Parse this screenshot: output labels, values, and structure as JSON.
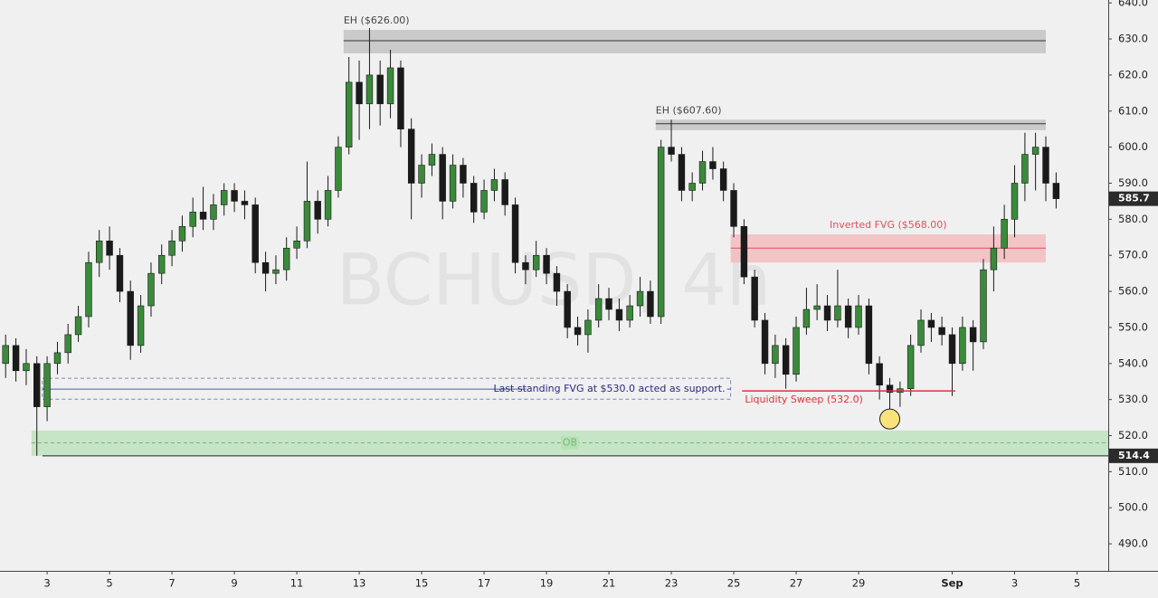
{
  "chart_data": {
    "type": "candlestick",
    "watermark": "BCHUSD, 4h",
    "xlim": [
      1.49,
      37.0
    ],
    "ylim": [
      482.5,
      640.8
    ],
    "xticks": [
      3,
      5,
      7,
      9,
      11,
      13,
      15,
      17,
      19,
      21,
      23,
      25,
      27,
      29,
      {
        "value": 32,
        "label": "Sep"
      },
      {
        "value": 34,
        "label": "3"
      },
      {
        "value": 36,
        "label": "5"
      }
    ],
    "yticks": [
      {
        "value": 490,
        "label": "490.0"
      },
      {
        "value": 500,
        "label": "500.0"
      },
      {
        "value": 510,
        "label": "510.0"
      },
      {
        "value": 520,
        "label": "520.0"
      },
      {
        "value": 530,
        "label": "530.0"
      },
      {
        "value": 540,
        "label": "540.0"
      },
      {
        "value": 550,
        "label": "550.0"
      },
      {
        "value": 560,
        "label": "560.0"
      },
      {
        "value": 570,
        "label": "570.0"
      },
      {
        "value": 580,
        "label": "580.0"
      },
      {
        "value": 590,
        "label": "590.0"
      },
      {
        "value": 600,
        "label": "600.0"
      },
      {
        "value": 610,
        "label": "610.0"
      },
      {
        "value": 620,
        "label": "620.0"
      },
      {
        "value": 630,
        "label": "630.0"
      },
      {
        "value": 640,
        "label": "640.0"
      }
    ],
    "up_color": "#3a8a3a",
    "down_color": "#1a1a1a",
    "x": [
      1.67,
      2,
      2.33,
      2.67,
      3,
      3.33,
      3.67,
      4,
      4.33,
      4.67,
      5,
      5.33,
      5.67,
      6,
      6.33,
      6.67,
      7,
      7.33,
      7.67,
      8,
      8.33,
      8.67,
      9,
      9.33,
      9.67,
      10,
      10.33,
      10.67,
      11,
      11.33,
      11.67,
      12,
      12.33,
      12.67,
      13,
      13.33,
      13.67,
      14,
      14.33,
      14.67,
      15,
      15.33,
      15.67,
      16,
      16.33,
      16.67,
      17,
      17.33,
      17.67,
      18,
      18.33,
      18.67,
      19,
      19.33,
      19.67,
      20,
      20.33,
      20.67,
      21,
      21.33,
      21.67,
      22,
      22.33,
      22.67,
      23,
      23.33,
      23.67,
      24,
      24.33,
      24.67,
      25,
      25.33,
      25.67,
      26,
      26.33,
      26.67,
      27,
      27.33,
      27.67,
      28,
      28.33,
      28.67,
      29,
      29.33,
      29.67,
      30,
      30.33,
      30.67,
      31,
      31.33,
      31.67,
      32,
      32.33,
      32.67,
      33,
      33.33,
      33.67,
      34,
      34.33,
      34.67,
      35,
      35.33
    ],
    "ohlc": [
      [
        540,
        548,
        536,
        545
      ],
      [
        545,
        547,
        535,
        538
      ],
      [
        538,
        544,
        534,
        540
      ],
      [
        540,
        542,
        514.4,
        528
      ],
      [
        528,
        542,
        524,
        540
      ],
      [
        540,
        546,
        537,
        543
      ],
      [
        543,
        551,
        540,
        548
      ],
      [
        548,
        556,
        546,
        553
      ],
      [
        553,
        571,
        550,
        568
      ],
      [
        568,
        577,
        564,
        574
      ],
      [
        574,
        578,
        566,
        570
      ],
      [
        570,
        572,
        557,
        560
      ],
      [
        560,
        563,
        541,
        545
      ],
      [
        545,
        559,
        543,
        556
      ],
      [
        556,
        568,
        553,
        565
      ],
      [
        565,
        573,
        562,
        570
      ],
      [
        570,
        577,
        567,
        574
      ],
      [
        574,
        581,
        571,
        578
      ],
      [
        578,
        586,
        575,
        582
      ],
      [
        582,
        589,
        577,
        580
      ],
      [
        580,
        587,
        577,
        584
      ],
      [
        584,
        590,
        581,
        588
      ],
      [
        588,
        590,
        582,
        585
      ],
      [
        585,
        588,
        580,
        584
      ],
      [
        584,
        586,
        565,
        568
      ],
      [
        568,
        571,
        560,
        565
      ],
      [
        565,
        570,
        562,
        566
      ],
      [
        566,
        575,
        563,
        572
      ],
      [
        572,
        578,
        569,
        574
      ],
      [
        574,
        596,
        572,
        585
      ],
      [
        585,
        588,
        576,
        580
      ],
      [
        580,
        592,
        578,
        588
      ],
      [
        588,
        603,
        586,
        600
      ],
      [
        600,
        625,
        598,
        618
      ],
      [
        618,
        624,
        602,
        612
      ],
      [
        612,
        633,
        605,
        620
      ],
      [
        620,
        624,
        606,
        612
      ],
      [
        612,
        627,
        608,
        622
      ],
      [
        622,
        624,
        600,
        605
      ],
      [
        605,
        608,
        580,
        590
      ],
      [
        590,
        598,
        586,
        595
      ],
      [
        595,
        601,
        592,
        598
      ],
      [
        598,
        600,
        580,
        585
      ],
      [
        585,
        598,
        583,
        595
      ],
      [
        595,
        597,
        586,
        590
      ],
      [
        590,
        592,
        579,
        582
      ],
      [
        582,
        591,
        580,
        588
      ],
      [
        588,
        594,
        585,
        591
      ],
      [
        591,
        593,
        581,
        584
      ],
      [
        584,
        586,
        565,
        568
      ],
      [
        568,
        570,
        562,
        566
      ],
      [
        566,
        574,
        564,
        570
      ],
      [
        570,
        572,
        562,
        565
      ],
      [
        565,
        567,
        556,
        560
      ],
      [
        560,
        562,
        547,
        550
      ],
      [
        550,
        553,
        545,
        548
      ],
      [
        548,
        555,
        543,
        552
      ],
      [
        552,
        562,
        550,
        558
      ],
      [
        558,
        561,
        552,
        555
      ],
      [
        555,
        558,
        549,
        552
      ],
      [
        552,
        559,
        550,
        556
      ],
      [
        556,
        564,
        553,
        560
      ],
      [
        560,
        563,
        551,
        553
      ],
      [
        553,
        602,
        551,
        600
      ],
      [
        600,
        607.6,
        596,
        598
      ],
      [
        598,
        600,
        585,
        588
      ],
      [
        588,
        593,
        585,
        590
      ],
      [
        590,
        599,
        588,
        596
      ],
      [
        596,
        600,
        591,
        594
      ],
      [
        594,
        596,
        585,
        588
      ],
      [
        588,
        590,
        575,
        578
      ],
      [
        578,
        580,
        562,
        564
      ],
      [
        564,
        566,
        550,
        552
      ],
      [
        552,
        554,
        537,
        540
      ],
      [
        540,
        548,
        536,
        545
      ],
      [
        545,
        547,
        533,
        537
      ],
      [
        537,
        553,
        535,
        550
      ],
      [
        550,
        561,
        548,
        555
      ],
      [
        555,
        562,
        552,
        556
      ],
      [
        556,
        559,
        549,
        552
      ],
      [
        552,
        566,
        550,
        556
      ],
      [
        556,
        558,
        547,
        550
      ],
      [
        550,
        559,
        548,
        556
      ],
      [
        556,
        558,
        537,
        540
      ],
      [
        540,
        542,
        530,
        534
      ],
      [
        534,
        536,
        527,
        532
      ],
      [
        532,
        535,
        528,
        533
      ],
      [
        533,
        548,
        531,
        545
      ],
      [
        545,
        555,
        543,
        552
      ],
      [
        552,
        554,
        546,
        550
      ],
      [
        550,
        553,
        545,
        548
      ],
      [
        548,
        550,
        531,
        540
      ],
      [
        540,
        553,
        538,
        550
      ],
      [
        550,
        552,
        538,
        546
      ],
      [
        546,
        569,
        544,
        566
      ],
      [
        566,
        578,
        560,
        572
      ],
      [
        572,
        584,
        569,
        580
      ],
      [
        580,
        595,
        575,
        590
      ],
      [
        590,
        604,
        585,
        598
      ],
      [
        598,
        604,
        588,
        600
      ],
      [
        600,
        603,
        585,
        590
      ],
      [
        590,
        593,
        583,
        585.7
      ]
    ],
    "zones": [
      {
        "label": "EH ($626.00)",
        "x0": 12.5,
        "x1": 35.0,
        "y0": 626,
        "y1": 632.5,
        "level": 629.5,
        "color": "#bdbdbd",
        "line_color": "#333333",
        "label_pos": "above-left",
        "dashed": false
      },
      {
        "label": "EH ($607.60)",
        "x0": 22.5,
        "x1": 35.0,
        "y0": 604.7,
        "y1": 607.6,
        "level": 606.5,
        "color": "#bdbdbd",
        "line_color": "#333333",
        "label_pos": "above-left",
        "dashed": false
      },
      {
        "label": "Inverted FVG ($568.00)",
        "x0": 24.9,
        "x1": 35.0,
        "y0": 568,
        "y1": 575.8,
        "level": 572,
        "color": "#f4b6b8",
        "line_color": "#e05060",
        "label_pos": "above-center",
        "dashed": false
      },
      {
        "label": "Last standing FVG at $530.0 acted as support.",
        "x0": 2.85,
        "x1": 24.9,
        "y0": 530.1,
        "y1": 535.9,
        "level": 532.9,
        "color": "none",
        "line_color": "#4a5aa8",
        "label_pos": "inside-right",
        "dashed": true
      },
      {
        "label": "OB",
        "x0": 2.5,
        "x1": 37.0,
        "y0": 514.4,
        "y1": 521.4,
        "level": 518,
        "color": "#b8e0b8",
        "line_color": "#6cbf6c",
        "label_pos": "inside-center",
        "dashed": true
      }
    ],
    "sweep": {
      "label": "Liquidity Sweep (532.0)",
      "x0": 25.27,
      "x1": 32.1,
      "y": 532.4,
      "color": "#e0303a"
    },
    "marker": {
      "x": 30.0,
      "y": 524.6,
      "color": "#f7e37a"
    },
    "low_line": {
      "x0": 2.85,
      "y": 514.4
    },
    "price_labels": [
      585.7,
      514.4
    ]
  }
}
